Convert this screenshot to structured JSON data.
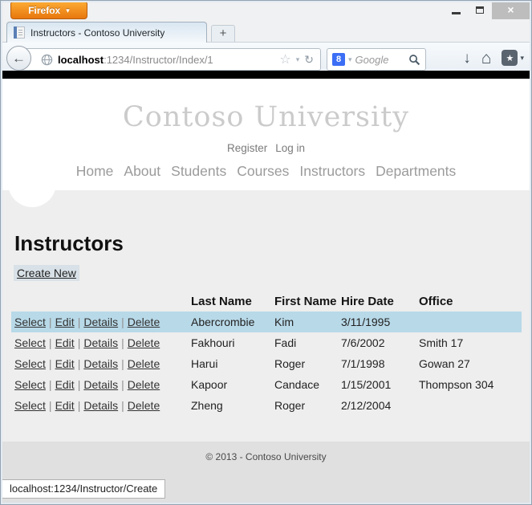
{
  "browser": {
    "menu_button": "Firefox",
    "window_controls": {
      "close_glyph": "×"
    },
    "tab": {
      "title": "Instructors - Contoso University"
    },
    "new_tab_label": "+",
    "url": {
      "host": "localhost",
      "rest": ":1234/Instructor/Index/1"
    },
    "search": {
      "placeholder": "Google",
      "engine_glyph": "8"
    },
    "icons": {
      "back": "←",
      "dropdown": "▾",
      "star": "☆",
      "reload": "↻",
      "download": "↓",
      "home": "⌂",
      "bookmark_star": "★"
    }
  },
  "page": {
    "brand": "Contoso University",
    "account_links": [
      {
        "label": "Register"
      },
      {
        "label": "Log in"
      }
    ],
    "nav": [
      {
        "label": "Home"
      },
      {
        "label": "About"
      },
      {
        "label": "Students"
      },
      {
        "label": "Courses"
      },
      {
        "label": "Instructors"
      },
      {
        "label": "Departments"
      }
    ],
    "heading": "Instructors",
    "create_label": "Create New",
    "table": {
      "columns": [
        "Last Name",
        "First Name",
        "Hire Date",
        "Office"
      ],
      "row_actions": [
        "Select",
        "Edit",
        "Details",
        "Delete"
      ],
      "rows": [
        {
          "last": "Abercrombie",
          "first": "Kim",
          "hire": "3/11/1995",
          "office": "",
          "selected": true
        },
        {
          "last": "Fakhouri",
          "first": "Fadi",
          "hire": "7/6/2002",
          "office": "Smith 17",
          "selected": false
        },
        {
          "last": "Harui",
          "first": "Roger",
          "hire": "7/1/1998",
          "office": "Gowan 27",
          "selected": false
        },
        {
          "last": "Kapoor",
          "first": "Candace",
          "hire": "1/15/2001",
          "office": "Thompson 304",
          "selected": false
        },
        {
          "last": "Zheng",
          "first": "Roger",
          "hire": "2/12/2004",
          "office": "",
          "selected": false
        }
      ]
    },
    "footer": "© 2013 - Contoso University",
    "status": "localhost:1234/Instructor/Create"
  },
  "colors": {
    "firefox_orange": "#e8770e",
    "selected_row": "#b8d9e8",
    "google_blue": "#3b6ef5",
    "brand_gray": "#cbcbcb",
    "nav_gray": "#9b9b9b",
    "content_bg": "#eeeeee",
    "footer_bg": "#e0e0e0",
    "page_top_bar": "#000000"
  }
}
